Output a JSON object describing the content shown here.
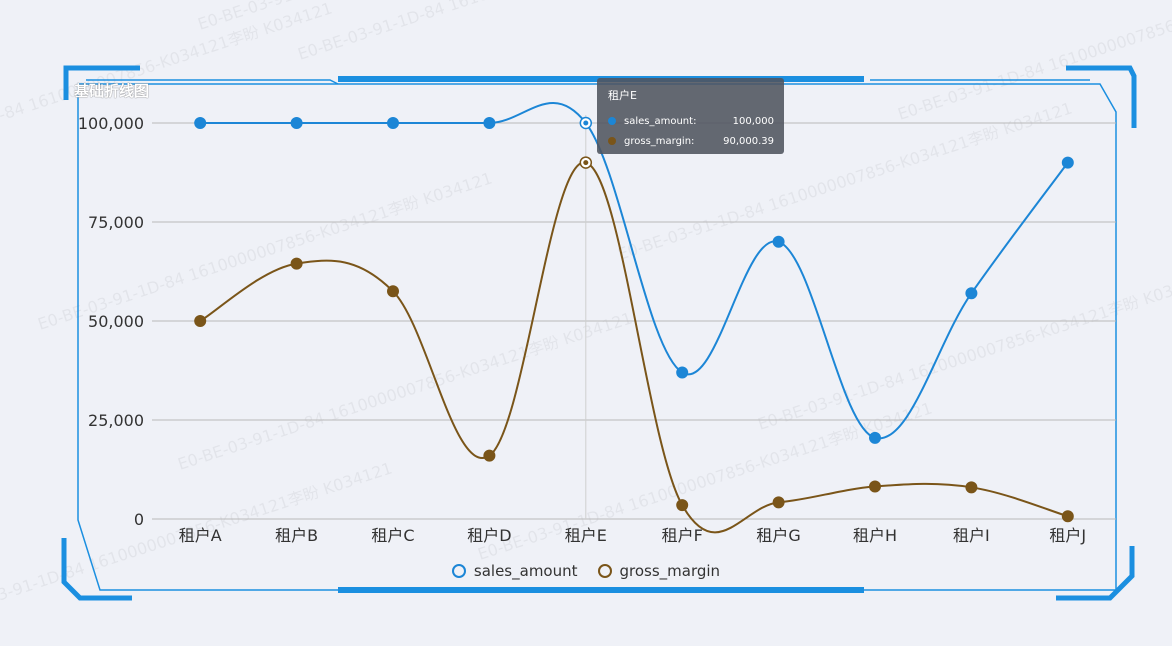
{
  "panel": {
    "title": "基础折线图"
  },
  "watermark_text": "E0-BE-03-91-1D-84 1610000007856-K034121李盼 K034121",
  "colors": {
    "sales_amount": "#1c86d6",
    "gross_margin": "#7a5519",
    "frame": "#1b8fe0",
    "grid": "#bbbbbb"
  },
  "tooltip": {
    "title": "租户E",
    "rows": [
      {
        "name": "sales_amount:",
        "value": "100,000"
      },
      {
        "name": "gross_margin:",
        "value": "90,000.39"
      }
    ]
  },
  "legend": {
    "items": [
      "sales_amount",
      "gross_margin"
    ]
  },
  "chart_data": {
    "type": "line",
    "smooth": true,
    "categories": [
      "租户A",
      "租户B",
      "租户C",
      "租户D",
      "租户E",
      "租户F",
      "租户G",
      "租户H",
      "租户I",
      "租户J"
    ],
    "series": [
      {
        "name": "sales_amount",
        "values": [
          100000,
          100000,
          100000,
          100000,
          100000,
          37000,
          70000,
          20500,
          57000,
          90000
        ]
      },
      {
        "name": "gross_margin",
        "values": [
          50000,
          64500,
          57500,
          16000,
          90000.39,
          3500,
          4200,
          8200,
          8000,
          700
        ]
      }
    ],
    "ylim": [
      0,
      100000
    ],
    "yticks": [
      "0",
      "25,000",
      "50,000",
      "75,000",
      "100,000"
    ],
    "ytick_values": [
      0,
      25000,
      50000,
      75000,
      100000
    ],
    "grid": true,
    "highlighted_category": "租户E",
    "legend_position": "bottom"
  }
}
